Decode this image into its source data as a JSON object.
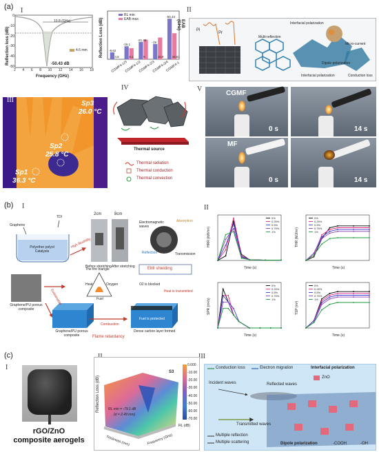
{
  "panel_a": {
    "label": "(a)",
    "numerals": [
      "I",
      "II",
      "III",
      "IV",
      "V"
    ],
    "rl_plot": {
      "ylabel": "Reflection loss (dB)",
      "xlabel": "Frequency (GHz)",
      "x_ticks": [
        "2",
        "4",
        "6",
        "8",
        "10",
        "12",
        "14",
        "16",
        "18"
      ],
      "y_ticks": [
        "0",
        "-10",
        "-20",
        "-30",
        "-40",
        "-50"
      ],
      "bandwidth_note": "10.8 (GHz)",
      "thickness_note": "4.6 mm",
      "min_note": "-50.43 dB"
    },
    "bar_plot": {
      "ylabel_left": "Reflection Loss (dB)",
      "ylabel_right": "EAB (GHz)",
      "legend": [
        "RL min",
        "EAB max"
      ],
      "categories": [
        "CGMF4-1/3",
        "CGMF4-1/2",
        "CGMF4-2/3",
        "CGMF4-3/4",
        "CGMF4-1"
      ],
      "rl_values": [
        -8.62,
        -16.1,
        -21.48,
        -19,
        -50.43
      ],
      "eab_values": [
        0,
        4.6,
        8.1,
        9,
        10.8
      ],
      "value_labels": [
        "-8.62",
        "-16.1",
        "-21.48",
        "-19",
        "-50.43",
        "4.6",
        "8.1",
        "9",
        "10.8",
        "16.51"
      ]
    },
    "mechanism": {
      "labels": [
        "Interfacial polarization",
        "Multi-reflection",
        "Micro-current",
        "Dipole polarization",
        "Interfacial polarization",
        "Conduction loss",
        "Pi",
        "Pr"
      ]
    },
    "thermal": {
      "labels": [
        "Sp3",
        "26.0 °C",
        "Sp2",
        "25.8 °C",
        "Sp1",
        "36.3 °C"
      ]
    },
    "thermal_schematic": {
      "source": "Thermal source",
      "legend": [
        "Thermal radiation",
        "Thermal conduction",
        "Thermal convection"
      ]
    },
    "flame": {
      "labels": [
        "CGMF",
        "MF"
      ],
      "times": [
        "0 s",
        "14 s",
        "0 s",
        "14 s"
      ]
    }
  },
  "panel_b": {
    "label": "(b)",
    "numerals": [
      "I",
      "II"
    ],
    "flow": {
      "reagents": [
        "Graphene",
        "TDI",
        "Polyether polyol Catalysts"
      ],
      "lengths": [
        "2cm",
        "8cm"
      ],
      "stretch": [
        "Before stretching",
        "After stretching"
      ],
      "arrows": [
        "High flexibility",
        "Sustainable"
      ],
      "composite": [
        "Graphene/PU porous composite",
        "Graphene/PU porous composite"
      ],
      "emi": [
        "Electromagnetic waves",
        "Absorption",
        "Reflection",
        "Transmission",
        "EMI shielding"
      ],
      "triangle": [
        "The fire triangle",
        "Heat",
        "Oxygen",
        "Fuel"
      ],
      "burn": [
        "O2 is blocked",
        "Heat is transmitted",
        "Fuel is protected",
        "Combustion",
        "Dense carbon layer formed",
        "Flame retardancy"
      ]
    },
    "charts_meta": {
      "legend": [
        "0%",
        "0.25%",
        "0.5%",
        "0.75%",
        "1%"
      ],
      "xlabel": "Time (s)",
      "ylabels": [
        "HRR (kW/m²)",
        "THR (MJ/m²)",
        "SPR (m²/s)",
        "TSP (m²)"
      ]
    }
  },
  "panel_c": {
    "label": "(c)",
    "numerals": [
      "I",
      "II",
      "III"
    ],
    "aerogel_caption": [
      "rGO/ZnO",
      "composite aerogels"
    ],
    "surface": {
      "ylabel": "Reflection Loss (dB)",
      "xlabel_a": "Thickness (mm)",
      "xlabel_b": "Frequency (GHz)",
      "tag": "S3",
      "annot": [
        "RL min = -79.1 dB",
        "(d = 2.49 mm)"
      ],
      "colorbar": [
        "0.000",
        "-10.00",
        "-20.00",
        "-30.00",
        "-40.00",
        "-50.00",
        "-60.00",
        "-70.00"
      ],
      "colorbar_title": "RL (dB)"
    },
    "mechanism": {
      "legend": [
        "Conduction loss",
        "Electron migration",
        "Interfacial polarization",
        "ZnO"
      ],
      "waves": [
        "Incident waves",
        "Reflected waves",
        "Transmitted waves"
      ],
      "bottom": [
        "Multiple reflection",
        "Multiple scattering",
        "Dipole polarization",
        "-COOH",
        "-OH"
      ]
    }
  },
  "chart_data": [
    {
      "type": "line",
      "title": "",
      "xlabel": "Time (s)",
      "ylabel": "HRR (kW/m²)",
      "x": [
        0,
        25,
        50,
        75,
        100,
        150,
        200
      ],
      "series": [
        {
          "name": "0%",
          "values": [
            0,
            60,
            520,
            80,
            10,
            5,
            5
          ]
        },
        {
          "name": "0.25%",
          "values": [
            0,
            140,
            560,
            60,
            10,
            5,
            5
          ]
        },
        {
          "name": "0.5%",
          "values": [
            0,
            200,
            480,
            50,
            10,
            5,
            5
          ]
        },
        {
          "name": "0.75%",
          "values": [
            0,
            280,
            420,
            40,
            10,
            5,
            5
          ]
        },
        {
          "name": "1%",
          "values": [
            0,
            340,
            380,
            30,
            10,
            5,
            5
          ]
        }
      ],
      "ylim": [
        0,
        600
      ]
    },
    {
      "type": "line",
      "xlabel": "Time (s)",
      "ylabel": "THR (MJ/m²)",
      "x": [
        0,
        25,
        50,
        75,
        100,
        150,
        200
      ],
      "series": [
        {
          "name": "0%",
          "values": [
            0,
            2,
            12,
            18,
            19,
            19,
            19
          ]
        },
        {
          "name": "0.25%",
          "values": [
            0,
            3,
            14,
            17,
            18,
            18,
            18
          ]
        },
        {
          "name": "0.5%",
          "values": [
            0,
            4,
            13,
            16,
            17,
            17,
            17
          ]
        },
        {
          "name": "0.75%",
          "values": [
            0,
            4,
            12,
            15,
            16,
            16,
            16
          ]
        },
        {
          "name": "1%",
          "values": [
            0,
            3,
            9,
            12,
            12.5,
            12.5,
            12.5
          ]
        }
      ],
      "ylim": [
        0,
        25
      ]
    },
    {
      "type": "line",
      "xlabel": "Time (s)",
      "ylabel": "SPR (m²/s)",
      "x": [
        0,
        10,
        20,
        30,
        40,
        60,
        80,
        100,
        120
      ],
      "series": [
        {
          "name": "0%",
          "values": [
            0,
            0.06,
            0.04,
            0.02,
            0.01,
            0,
            0,
            0,
            0
          ]
        },
        {
          "name": "0.25%",
          "values": [
            0,
            0.05,
            0.05,
            0.02,
            0.01,
            0,
            0,
            0,
            0
          ]
        },
        {
          "name": "0.5%",
          "values": [
            0,
            0.05,
            0.04,
            0.03,
            0.01,
            0,
            0,
            0,
            0
          ]
        },
        {
          "name": "0.75%",
          "values": [
            0,
            0.04,
            0.04,
            0.02,
            0.01,
            0,
            0,
            0,
            0
          ]
        },
        {
          "name": "1%",
          "values": [
            0,
            0.03,
            0.03,
            0.02,
            0.01,
            0,
            0,
            0,
            0
          ]
        }
      ],
      "ylim": [
        0,
        0.07
      ]
    },
    {
      "type": "line",
      "xlabel": "Time (s)",
      "ylabel": "TSP (m²)",
      "x": [
        0,
        25,
        50,
        75,
        100,
        150,
        200
      ],
      "series": [
        {
          "name": "0%",
          "values": [
            0,
            0.4,
            1.6,
            1.9,
            2.0,
            2.0,
            2.0
          ]
        },
        {
          "name": "0.25%",
          "values": [
            0,
            0.4,
            1.5,
            1.8,
            1.9,
            1.9,
            1.9
          ]
        },
        {
          "name": "0.5%",
          "values": [
            0,
            0.4,
            1.4,
            1.7,
            1.8,
            1.8,
            1.8
          ]
        },
        {
          "name": "0.75%",
          "values": [
            0,
            0.3,
            1.3,
            1.6,
            1.7,
            1.7,
            1.7
          ]
        },
        {
          "name": "1%",
          "values": [
            0,
            0.3,
            1.0,
            1.3,
            1.4,
            1.4,
            1.4
          ]
        }
      ],
      "ylim": [
        0,
        2.5
      ]
    }
  ],
  "colors": {
    "series": [
      "#000000",
      "#e0287f",
      "#3a3acb",
      "#8a3fb8",
      "#1a9a3c"
    ],
    "bar_rl": "#7b76c9",
    "bar_eab": "#e87aa0"
  }
}
